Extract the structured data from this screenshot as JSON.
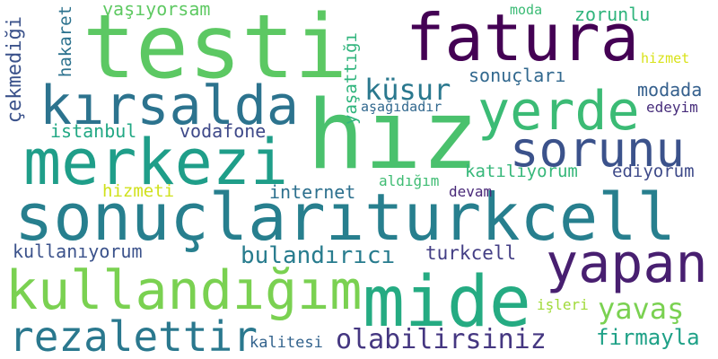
{
  "words": [
    {
      "text": "testi",
      "color": "#5cc863"
    },
    {
      "text": "fatura",
      "color": "#440154"
    },
    {
      "text": "hız",
      "color": "#4ac16d"
    },
    {
      "text": "kırsalda",
      "color": "#2c738e"
    },
    {
      "text": "yerde",
      "color": "#3bbb75"
    },
    {
      "text": "merkezi",
      "color": "#1f9e89"
    },
    {
      "text": "sorunu",
      "color": "#3b528b"
    },
    {
      "text": "sonuçlarıturkcell",
      "color": "#277f8e"
    },
    {
      "text": "yapan",
      "color": "#481f70"
    },
    {
      "text": "kullandığım",
      "color": "#7ad151"
    },
    {
      "text": "mide",
      "color": "#25ab82"
    },
    {
      "text": "rezalettir",
      "color": "#2a788e"
    },
    {
      "text": "olabilirsiniz",
      "color": "#453781"
    },
    {
      "text": "küsur",
      "color": "#2a788e"
    },
    {
      "text": "sonuçları",
      "color": "#31688e"
    },
    {
      "text": "yaşıyorsam",
      "color": "#5ec962"
    },
    {
      "text": "zorunlu",
      "color": "#2fb47c"
    },
    {
      "text": "moda",
      "color": "#3bbb75"
    },
    {
      "text": "hizmet",
      "color": "#d8e219"
    },
    {
      "text": "modada",
      "color": "#35608d"
    },
    {
      "text": "edeyim",
      "color": "#472d7b"
    },
    {
      "text": "aşağıdadır",
      "color": "#31688e"
    },
    {
      "text": "istanbul",
      "color": "#22a884"
    },
    {
      "text": "vodafone",
      "color": "#3e4989"
    },
    {
      "text": "katılıyorum",
      "color": "#35b779"
    },
    {
      "text": "ediyorum",
      "color": "#3e4a89"
    },
    {
      "text": "hizmeti",
      "color": "#d0e11c"
    },
    {
      "text": "internet",
      "color": "#2d708e"
    },
    {
      "text": "aldığım",
      "color": "#3fbc73"
    },
    {
      "text": "devam",
      "color": "#482878"
    },
    {
      "text": "kullanıyorum",
      "color": "#3b528b"
    },
    {
      "text": "bulandırıcı",
      "color": "#287c8e"
    },
    {
      "text": "turkcell",
      "color": "#433e85"
    },
    {
      "text": "yavaş",
      "color": "#7ad151"
    },
    {
      "text": "işleri",
      "color": "#a0da39"
    },
    {
      "text": "firmayla",
      "color": "#1fa187"
    },
    {
      "text": "kalitesi",
      "color": "#33638d"
    },
    {
      "text": "çekmediği",
      "color": "#3b528b"
    },
    {
      "text": "hakaret",
      "color": "#2c728e"
    },
    {
      "text": "yaşattığı",
      "color": "#2fb47c"
    }
  ]
}
